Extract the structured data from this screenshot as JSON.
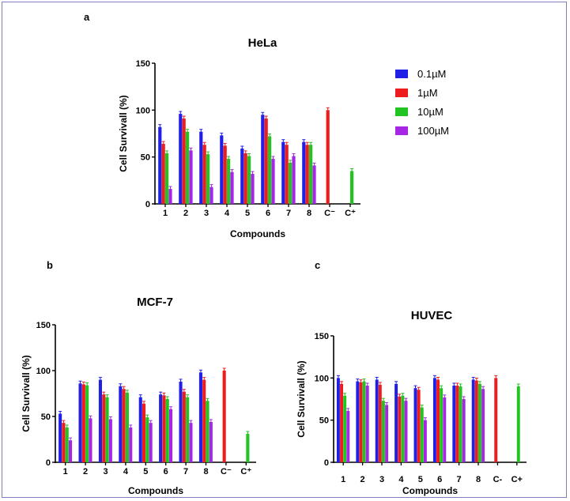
{
  "panels": {
    "a": "a",
    "b": "b",
    "c": "c"
  },
  "legend": [
    {
      "label": "0.1µM",
      "color": "#1f1fe6"
    },
    {
      "label": "1µM",
      "color": "#ee1c1c"
    },
    {
      "label": "10µM",
      "color": "#21c421"
    },
    {
      "label": "100µM",
      "color": "#a626e6"
    }
  ],
  "chart_data": [
    {
      "id": "hela",
      "type": "bar",
      "title": "HeLa",
      "xlabel": "Compounds",
      "ylabel": "Cell Survivall (%)",
      "ylim": [
        0,
        150
      ],
      "yticks": [
        "0",
        "50",
        "100",
        "150"
      ],
      "categories": [
        "1",
        "2",
        "3",
        "4",
        "5",
        "6",
        "7",
        "8",
        "C⁻",
        "C⁺"
      ],
      "series": [
        {
          "name": "0.1µM",
          "values": [
            82,
            96,
            77,
            73,
            59,
            95,
            66,
            66,
            null,
            null
          ]
        },
        {
          "name": "1µM",
          "values": [
            64,
            91,
            63,
            62,
            54,
            91,
            63,
            63,
            100,
            null
          ]
        },
        {
          "name": "10µM",
          "values": [
            54,
            77,
            53,
            48,
            51,
            72,
            44,
            63,
            null,
            35
          ]
        },
        {
          "name": "100µM",
          "values": [
            16,
            57,
            18,
            34,
            32,
            48,
            51,
            41,
            null,
            null
          ]
        }
      ]
    },
    {
      "id": "mcf7",
      "type": "bar",
      "title": "MCF-7",
      "xlabel": "Compounds",
      "ylabel": "Cell Survivall (%)",
      "ylim": [
        0,
        150
      ],
      "yticks": [
        "0",
        "50",
        "100",
        "150"
      ],
      "categories": [
        "1",
        "2",
        "3",
        "4",
        "5",
        "6",
        "7",
        "8",
        "C⁻",
        "C⁺"
      ],
      "series": [
        {
          "name": "0.1µM",
          "values": [
            53,
            86,
            90,
            83,
            71,
            74,
            88,
            98,
            null,
            null
          ]
        },
        {
          "name": "1µM",
          "values": [
            43,
            85,
            74,
            80,
            64,
            73,
            77,
            90,
            100,
            null
          ]
        },
        {
          "name": "10µM",
          "values": [
            38,
            84,
            71,
            76,
            49,
            69,
            71,
            67,
            null,
            31
          ]
        },
        {
          "name": "100µM",
          "values": [
            24,
            48,
            47,
            38,
            43,
            58,
            43,
            44,
            null,
            null
          ]
        }
      ]
    },
    {
      "id": "huvec",
      "type": "bar",
      "title": "HUVEC",
      "xlabel": "Compounds",
      "ylabel": "Cell Survivall (%)",
      "ylim": [
        0,
        150
      ],
      "yticks": [
        "0",
        "50",
        "100",
        "150"
      ],
      "categories": [
        "1",
        "2",
        "3",
        "4",
        "5",
        "6",
        "7",
        "8",
        "C-",
        "C+"
      ],
      "series": [
        {
          "name": "0.1µM",
          "values": [
            100,
            96,
            98,
            93,
            88,
            100,
            91,
            98,
            null,
            null
          ]
        },
        {
          "name": "1µM",
          "values": [
            93,
            95,
            92,
            78,
            86,
            98,
            91,
            97,
            100,
            null
          ]
        },
        {
          "name": "10µM",
          "values": [
            79,
            96,
            73,
            79,
            65,
            88,
            90,
            93,
            null,
            90
          ]
        },
        {
          "name": "100µM",
          "values": [
            61,
            91,
            68,
            73,
            50,
            77,
            75,
            87,
            null,
            null
          ]
        }
      ]
    }
  ]
}
